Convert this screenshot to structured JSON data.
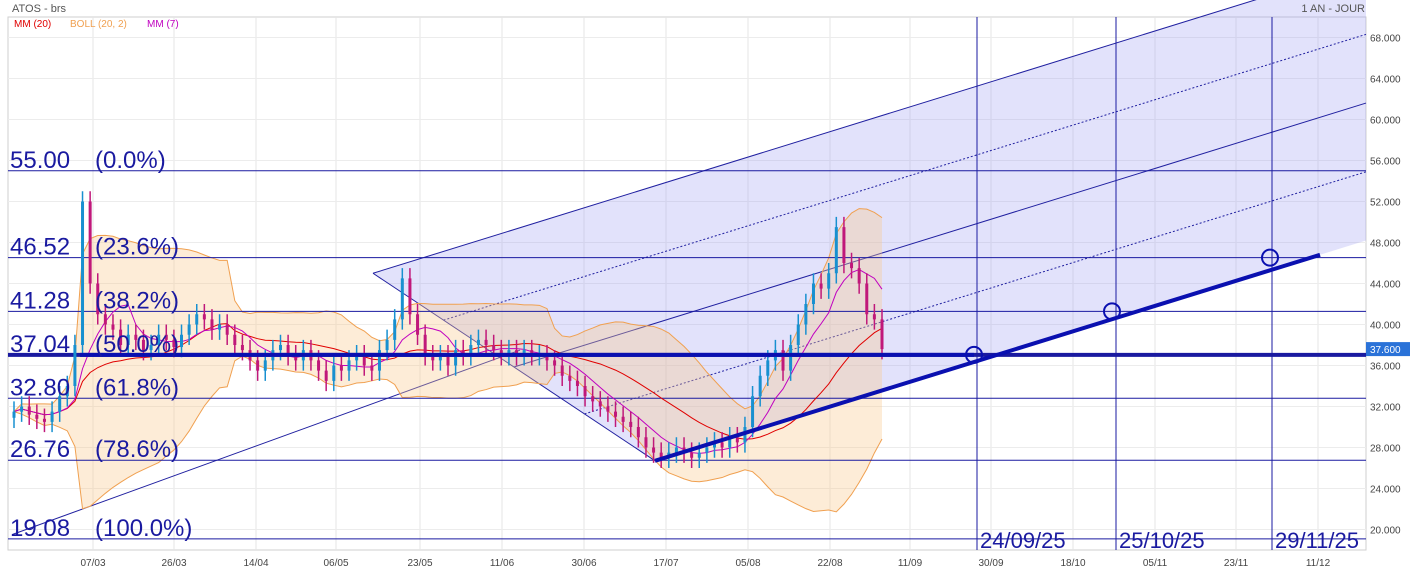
{
  "header": {
    "symbol": "ATOS - brs",
    "period": "1 AN - JOUR",
    "legend": [
      {
        "label": "MM (20)",
        "color": "#e00000"
      },
      {
        "label": "BOLL (20, 2)",
        "color": "#f0a050"
      },
      {
        "label": "MM (7)",
        "color": "#c000c0"
      }
    ]
  },
  "chart_data": {
    "type": "candlestick",
    "yaxis": {
      "range": [
        18,
        70
      ],
      "ticks": [
        "20.000",
        "24.000",
        "28.000",
        "32.000",
        "36.000",
        "40.000",
        "44.000",
        "48.000",
        "52.000",
        "56.000",
        "60.000",
        "64.000",
        "68.000"
      ]
    },
    "xaxis": {
      "ticks": [
        "07/03",
        "26/03",
        "14/04",
        "06/05",
        "23/05",
        "11/06",
        "30/06",
        "17/07",
        "05/08",
        "22/08",
        "11/09",
        "30/09",
        "18/10",
        "05/11",
        "23/11",
        "11/12"
      ]
    },
    "last_price": "37.600",
    "fib_levels": [
      {
        "label": "55.00",
        "pct": "(0.0%)",
        "value": 55.0
      },
      {
        "label": "46.52",
        "pct": "(23.6%)",
        "value": 46.52
      },
      {
        "label": "41.28",
        "pct": "(38.2%)",
        "value": 41.28
      },
      {
        "label": "37.04",
        "pct": "(50.0%)",
        "value": 37.04
      },
      {
        "label": "32.80",
        "pct": "(61.8%)",
        "value": 32.8
      },
      {
        "label": "26.76",
        "pct": "(78.6%)",
        "value": 26.76
      },
      {
        "label": "19.08",
        "pct": "(100.0%)",
        "value": 19.08
      }
    ],
    "date_markers": [
      "24/09/25",
      "25/10/25",
      "29/11/25"
    ],
    "closes": [
      31.5,
      32.0,
      31.2,
      30.8,
      30.5,
      31.5,
      33.0,
      34.0,
      38.0,
      52.0,
      44.0,
      41.0,
      40.0,
      39.5,
      38.0,
      39.0,
      38.5,
      37.5,
      38.0,
      39.0,
      38.5,
      37.8,
      39.0,
      40.0,
      41.0,
      40.5,
      39.5,
      40.0,
      39.0,
      38.0,
      37.5,
      36.5,
      35.5,
      36.5,
      37.5,
      38.0,
      37.0,
      36.5,
      37.5,
      36.5,
      35.5,
      34.5,
      36.0,
      35.5,
      36.5,
      37.0,
      36.0,
      35.5,
      37.5,
      38.5,
      40.5,
      44.5,
      41.0,
      39.0,
      37.0,
      36.5,
      37.0,
      36.0,
      37.5,
      37.0,
      38.0,
      38.5,
      38.0,
      37.5,
      37.0,
      37.5,
      37.0,
      37.5,
      37.0,
      37.0,
      36.5,
      36.0,
      35.0,
      34.5,
      34.0,
      33.0,
      32.5,
      32.0,
      31.5,
      31.0,
      30.5,
      30.0,
      29.0,
      28.0,
      27.5,
      27.0,
      27.5,
      28.0,
      27.5,
      27.0,
      27.5,
      28.0,
      28.5,
      28.0,
      29.0,
      28.5,
      30.0,
      33.0,
      35.0,
      36.5,
      37.5,
      35.5,
      38.0,
      40.0,
      42.0,
      44.0,
      43.5,
      45.0,
      49.5,
      46.0,
      45.5,
      44.0,
      41.0,
      40.5,
      37.6
    ]
  }
}
